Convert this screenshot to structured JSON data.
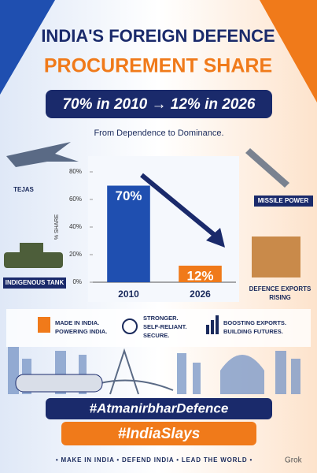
{
  "header": {
    "title_lines": [
      "INDIA'S FOREIGN DEFENCE",
      "PROCUREMENT SHARE"
    ],
    "banner": "70% in 2010 → 12% in 2026",
    "tagline": "From Dependence to Dominance."
  },
  "chart_data": {
    "type": "bar",
    "categories": [
      "2010",
      "2026"
    ],
    "values": [
      70,
      12
    ],
    "value_labels": [
      "70%",
      "12%"
    ],
    "colors": [
      "#1f4fb0",
      "#f07a1a"
    ],
    "y_label": "% SHARE",
    "ylim": [
      0,
      80
    ],
    "yticks": [
      {
        "value": 0,
        "label": "0%"
      },
      {
        "value": 20,
        "label": "20%"
      },
      {
        "value": 40,
        "label": "40%"
      },
      {
        "value": 60,
        "label": "60%"
      },
      {
        "value": 80,
        "label": "80%"
      }
    ]
  },
  "icons": {
    "jet": "TEJAS",
    "missile": "MISSILE POWER",
    "tank": "INDIGENOUS TANK",
    "exports": [
      "DEFENCE EXPORTS",
      "RISING"
    ]
  },
  "features": [
    [
      "MADE IN INDIA.",
      "POWERING INDIA."
    ],
    [
      "STRONGER.",
      "SELF-RELIANT.",
      "SECURE."
    ],
    [
      "BOOSTING EXPORTS.",
      "BUILDING FUTURES."
    ]
  ],
  "hashtags": [
    "#AtmanirbharDefence",
    "#IndiaSlays"
  ],
  "footer": "• MAKE IN INDIA • DEFEND INDIA • LEAD THE WORLD •",
  "watermark": "Grok"
}
